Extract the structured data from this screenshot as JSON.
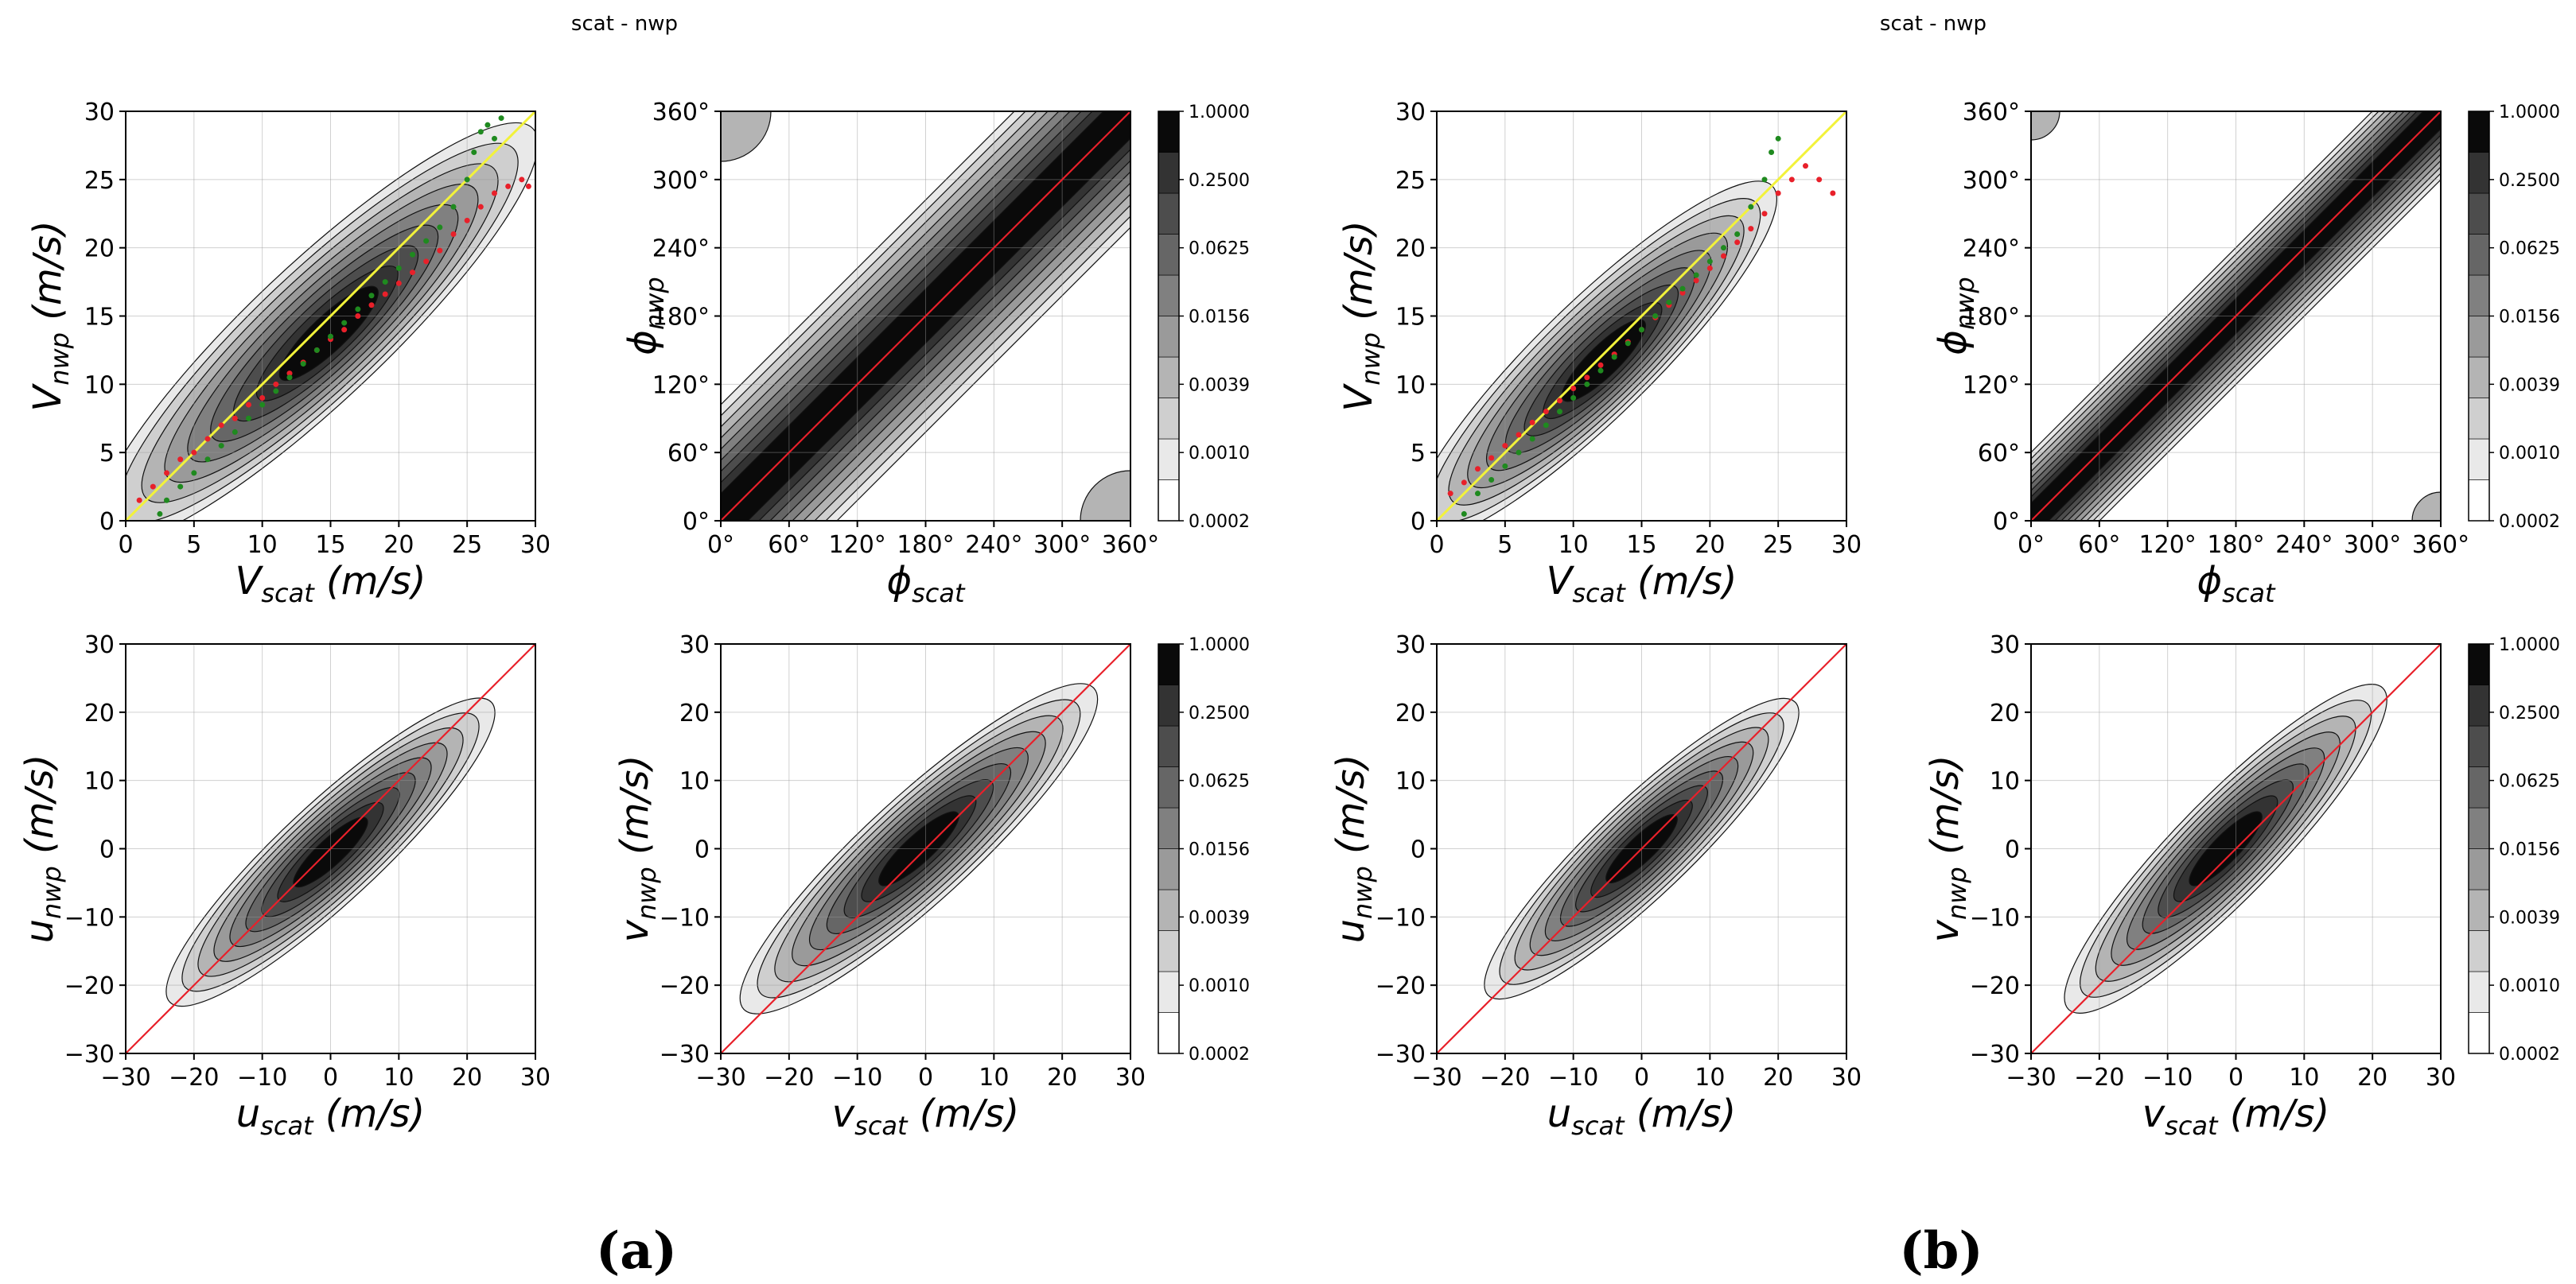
{
  "figure": {
    "panel_labels": [
      "(a)",
      "(b)"
    ],
    "group_titles": [
      "scat - nwp",
      "scat - nwp"
    ]
  },
  "colorbar": {
    "ticks": [
      "1.0000",
      "0.2500",
      "0.0625",
      "0.0156",
      "0.0039",
      "0.0010",
      "0.0002"
    ],
    "levels": 10,
    "colors": [
      "#ffffff",
      "#e9e9e9",
      "#cfcfcf",
      "#b4b4b4",
      "#9a9a9a",
      "#808080",
      "#666666",
      "#4d4d4d",
      "#333333",
      "#0a0a0a"
    ]
  },
  "colors": {
    "identity": "#e8202a",
    "yellow_line": "#f2f23a",
    "green_points": "#1f8a1f",
    "red_points": "#e8202a"
  },
  "chart_data": [
    {
      "type": "heatmap",
      "group": "(a)",
      "id": "a-speed",
      "xlabel_main": "V",
      "xlabel_sub": "scat",
      "xlabel_unit": "(m/s)",
      "ylabel_main": "V",
      "ylabel_sub": "nwp",
      "ylabel_unit": "(m/s)",
      "xlim": [
        0,
        30
      ],
      "ylim": [
        0,
        30
      ],
      "xticks": [
        0,
        5,
        10,
        15,
        20,
        25,
        30
      ],
      "yticks": [
        0,
        5,
        10,
        15,
        20,
        25,
        30
      ],
      "xtick_labels": [
        "0",
        "5",
        "10",
        "15",
        "20",
        "25",
        "30"
      ],
      "ytick_labels": [
        "0",
        "5",
        "10",
        "15",
        "20",
        "25",
        "30"
      ],
      "grid": true,
      "identity_line": true,
      "ridge": {
        "from": [
          0,
          0.5
        ],
        "to": [
          28,
          27
        ]
      },
      "yellow_line": {
        "from": [
          0,
          0
        ],
        "to": [
          30,
          30
        ]
      },
      "green_points": {
        "x": [
          2.5,
          3,
          4,
          5,
          6,
          7,
          8,
          9,
          10,
          11,
          12,
          13,
          14,
          15,
          16,
          17,
          18,
          19,
          20,
          21,
          22,
          23,
          24,
          25,
          25.5,
          26,
          26.5,
          27,
          27.5
        ],
        "y": [
          0.5,
          1.5,
          2.5,
          3.5,
          4.5,
          5.5,
          6.5,
          7.5,
          8.5,
          9.5,
          10.5,
          11.5,
          12.5,
          13.5,
          14.5,
          15.5,
          16.5,
          17.5,
          18.5,
          19.5,
          20.5,
          21.5,
          23,
          25,
          27,
          28.5,
          29,
          28,
          29.5
        ]
      },
      "red_points": {
        "x": [
          1,
          2,
          3,
          4,
          5,
          6,
          7,
          8,
          9,
          10,
          11,
          12,
          13,
          14,
          15,
          16,
          17,
          18,
          19,
          20,
          21,
          22,
          23,
          24,
          25,
          26,
          27,
          28,
          29,
          29.5
        ],
        "y": [
          1.5,
          2.5,
          3.5,
          4.5,
          5,
          6,
          7,
          7.5,
          8.5,
          9,
          10,
          10.8,
          11.6,
          12.5,
          13.3,
          14,
          15,
          15.8,
          16.6,
          17.4,
          18.2,
          19,
          19.8,
          21,
          22,
          23,
          24,
          24.5,
          25,
          24.5
        ]
      }
    },
    {
      "type": "heatmap",
      "group": "(a)",
      "id": "a-dir",
      "xlabel_main": "ϕ",
      "xlabel_sub": "scat",
      "xlabel_unit": "",
      "ylabel_main": "ϕ",
      "ylabel_sub": "nwp",
      "ylabel_unit": "",
      "xlim": [
        0,
        360
      ],
      "ylim": [
        0,
        360
      ],
      "xticks": [
        0,
        60,
        120,
        180,
        240,
        300,
        360
      ],
      "yticks": [
        0,
        60,
        120,
        180,
        240,
        300,
        360
      ],
      "xtick_labels": [
        "0°",
        "60°",
        "120°",
        "180°",
        "240°",
        "300°",
        "360°"
      ],
      "ytick_labels": [
        "0°",
        "60°",
        "120°",
        "180°",
        "240°",
        "300°",
        "360°"
      ],
      "grid": true,
      "identity_line": true,
      "colorbar": true,
      "band": "wide"
    },
    {
      "type": "heatmap",
      "group": "(b)",
      "id": "b-speed",
      "xlabel_main": "V",
      "xlabel_sub": "scat",
      "xlabel_unit": "(m/s)",
      "ylabel_main": "V",
      "ylabel_sub": "nwp",
      "ylabel_unit": "(m/s)",
      "xlim": [
        0,
        30
      ],
      "ylim": [
        0,
        30
      ],
      "xticks": [
        0,
        5,
        10,
        15,
        20,
        25,
        30
      ],
      "yticks": [
        0,
        5,
        10,
        15,
        20,
        25,
        30
      ],
      "xtick_labels": [
        "0",
        "5",
        "10",
        "15",
        "20",
        "25",
        "30"
      ],
      "ytick_labels": [
        "0",
        "5",
        "10",
        "15",
        "20",
        "25",
        "30"
      ],
      "grid": true,
      "identity_line": true,
      "ridge": {
        "from": [
          0,
          0.5
        ],
        "to": [
          23,
          23
        ]
      },
      "yellow_line": {
        "from": [
          0,
          0
        ],
        "to": [
          30,
          30
        ]
      },
      "green_points": {
        "x": [
          2,
          3,
          4,
          5,
          6,
          7,
          8,
          9,
          10,
          11,
          12,
          13,
          14,
          15,
          16,
          17,
          18,
          19,
          20,
          21,
          22,
          23,
          24,
          24.5,
          25
        ],
        "y": [
          0.5,
          2,
          3,
          4,
          5,
          6,
          7,
          8,
          9,
          10,
          11,
          12,
          13,
          14,
          15,
          16,
          17,
          18,
          19,
          20,
          21,
          23,
          25,
          27,
          28
        ]
      },
      "red_points": {
        "x": [
          1,
          2,
          3,
          4,
          5,
          6,
          7,
          8,
          9,
          10,
          11,
          12,
          13,
          14,
          15,
          16,
          17,
          18,
          19,
          20,
          21,
          22,
          23,
          24,
          25,
          26,
          27,
          28,
          29
        ],
        "y": [
          2,
          2.8,
          3.8,
          4.6,
          5.5,
          6.3,
          7.2,
          8,
          8.8,
          9.7,
          10.5,
          11.4,
          12.2,
          13.1,
          14,
          14.9,
          15.8,
          16.7,
          17.6,
          18.5,
          19.4,
          20.4,
          21.4,
          22.5,
          24,
          25,
          26,
          25,
          24
        ]
      }
    },
    {
      "type": "heatmap",
      "group": "(b)",
      "id": "b-dir",
      "xlabel_main": "ϕ",
      "xlabel_sub": "scat",
      "xlabel_unit": "",
      "ylabel_main": "ϕ",
      "ylabel_sub": "nwp",
      "ylabel_unit": "",
      "xlim": [
        0,
        360
      ],
      "ylim": [
        0,
        360
      ],
      "xticks": [
        0,
        60,
        120,
        180,
        240,
        300,
        360
      ],
      "yticks": [
        0,
        60,
        120,
        180,
        240,
        300,
        360
      ],
      "xtick_labels": [
        "0°",
        "60°",
        "120°",
        "180°",
        "240°",
        "300°",
        "360°"
      ],
      "ytick_labels": [
        "0°",
        "60°",
        "120°",
        "180°",
        "240°",
        "300°",
        "360°"
      ],
      "grid": true,
      "identity_line": true,
      "colorbar": true,
      "band": "narrow"
    },
    {
      "type": "heatmap",
      "group": "(a)",
      "id": "a-u",
      "xlabel_main": "u",
      "xlabel_sub": "scat",
      "xlabel_unit": "(m/s)",
      "ylabel_main": "u",
      "ylabel_sub": "nwp",
      "ylabel_unit": "(m/s)",
      "xlim": [
        -30,
        30
      ],
      "ylim": [
        -30,
        30
      ],
      "xticks": [
        -30,
        -20,
        -10,
        0,
        10,
        20,
        30
      ],
      "yticks": [
        -30,
        -20,
        -10,
        0,
        10,
        20,
        30
      ],
      "xtick_labels": [
        "−30",
        "−20",
        "−10",
        "0",
        "10",
        "20",
        "30"
      ],
      "ytick_labels": [
        "−30",
        "−20",
        "−10",
        "0",
        "10",
        "20",
        "30"
      ],
      "grid": true,
      "identity_line": true,
      "blob": {
        "from": [
          -22,
          -21
        ],
        "to": [
          22,
          20
        ]
      }
    },
    {
      "type": "heatmap",
      "group": "(a)",
      "id": "a-v",
      "xlabel_main": "v",
      "xlabel_sub": "scat",
      "xlabel_unit": "(m/s)",
      "ylabel_main": "v",
      "ylabel_sub": "nwp",
      "ylabel_unit": "(m/s)",
      "xlim": [
        -30,
        30
      ],
      "ylim": [
        -30,
        30
      ],
      "xticks": [
        -30,
        -20,
        -10,
        0,
        10,
        20,
        30
      ],
      "yticks": [
        -30,
        -20,
        -10,
        0,
        10,
        20,
        30
      ],
      "xtick_labels": [
        "−30",
        "−20",
        "−10",
        "0",
        "10",
        "20",
        "30"
      ],
      "ytick_labels": [
        "−30",
        "−20",
        "−10",
        "0",
        "10",
        "20",
        "30"
      ],
      "grid": true,
      "identity_line": true,
      "colorbar": true,
      "blob": {
        "from": [
          -25,
          -22
        ],
        "to": [
          23,
          22
        ]
      }
    },
    {
      "type": "heatmap",
      "group": "(b)",
      "id": "b-u",
      "xlabel_main": "u",
      "xlabel_sub": "scat",
      "xlabel_unit": "(m/s)",
      "ylabel_main": "u",
      "ylabel_sub": "nwp",
      "ylabel_unit": "(m/s)",
      "xlim": [
        -30,
        30
      ],
      "ylim": [
        -30,
        30
      ],
      "xticks": [
        -30,
        -20,
        -10,
        0,
        10,
        20,
        30
      ],
      "yticks": [
        -30,
        -20,
        -10,
        0,
        10,
        20,
        30
      ],
      "xtick_labels": [
        "−30",
        "−20",
        "−10",
        "0",
        "10",
        "20",
        "30"
      ],
      "ytick_labels": [
        "−30",
        "−20",
        "−10",
        "0",
        "10",
        "20",
        "30"
      ],
      "grid": true,
      "identity_line": true,
      "blob": {
        "from": [
          -21,
          -20
        ],
        "to": [
          21,
          20
        ]
      }
    },
    {
      "type": "heatmap",
      "group": "(b)",
      "id": "b-v",
      "xlabel_main": "v",
      "xlabel_sub": "scat",
      "xlabel_unit": "(m/s)",
      "ylabel_main": "v",
      "ylabel_sub": "nwp",
      "ylabel_unit": "(m/s)",
      "xlim": [
        -30,
        30
      ],
      "ylim": [
        -30,
        30
      ],
      "xticks": [
        -30,
        -20,
        -10,
        0,
        10,
        20,
        30
      ],
      "yticks": [
        -30,
        -20,
        -10,
        0,
        10,
        20,
        30
      ],
      "xtick_labels": [
        "−30",
        "−20",
        "−10",
        "0",
        "10",
        "20",
        "30"
      ],
      "ytick_labels": [
        "−30",
        "−20",
        "−10",
        "0",
        "10",
        "20",
        "30"
      ],
      "grid": true,
      "identity_line": true,
      "colorbar": true,
      "blob": {
        "from": [
          -23,
          -22
        ],
        "to": [
          20,
          22
        ]
      }
    }
  ]
}
